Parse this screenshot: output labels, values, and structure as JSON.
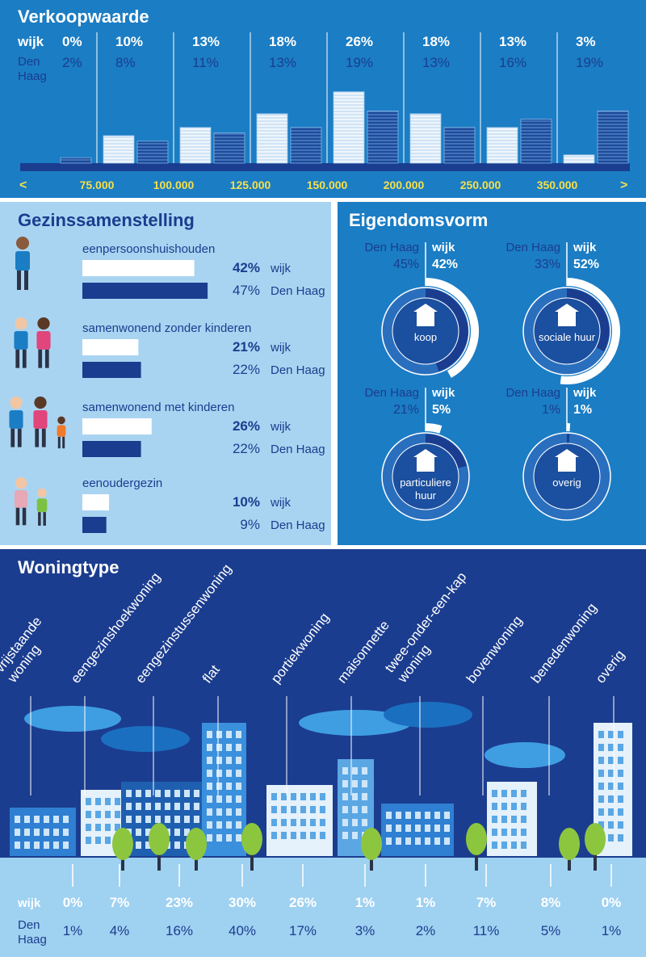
{
  "chart_data": [
    {
      "type": "bar",
      "title": "Verkoopwaarde",
      "bin_edges": [
        {
          "value": 75000,
          "label": "75.000"
        },
        {
          "value": 100000,
          "label": "100.000"
        },
        {
          "value": 125000,
          "label": "125.000"
        },
        {
          "value": 150000,
          "label": "150.000"
        },
        {
          "value": 200000,
          "label": "200.000"
        },
        {
          "value": 250000,
          "label": "250.000"
        },
        {
          "value": 350000,
          "label": "350.000"
        }
      ],
      "series": [
        {
          "name": "wijk",
          "color": "#eef5fc",
          "values": [
            0,
            10,
            13,
            18,
            26,
            18,
            13,
            3
          ],
          "value_labels": [
            "0%",
            "10%",
            "13%",
            "18%",
            "26%",
            "18%",
            "13%",
            "3%"
          ]
        },
        {
          "name": "Den Haag",
          "color": "#1f4b9c",
          "values": [
            2,
            8,
            11,
            13,
            19,
            13,
            16,
            19
          ],
          "value_labels": [
            "2%",
            "8%",
            "11%",
            "13%",
            "19%",
            "13%",
            "16%",
            "19%"
          ]
        }
      ]
    },
    {
      "type": "hbar",
      "title": "Gezinssamenstelling",
      "categories": [
        "eenpersoonshuishouden",
        "samenwonend zonder kinderen",
        "samenwonend met kinderen",
        "eenoudergezin"
      ],
      "series": [
        {
          "name": "wijk",
          "color": "#ffffff",
          "values": [
            42,
            21,
            26,
            10
          ],
          "value_labels": [
            "42%",
            "21%",
            "26%",
            "10%"
          ]
        },
        {
          "name": "Den Haag",
          "color": "#1b3d8f",
          "values": [
            47,
            22,
            22,
            9
          ],
          "value_labels": [
            "47%",
            "22%",
            "22%",
            "9%"
          ]
        }
      ]
    },
    {
      "type": "donut",
      "title": "Eigendomsvorm",
      "categories": [
        "koop",
        "sociale huur",
        "particuliere huur",
        "overig"
      ],
      "series": [
        {
          "name": "wijk",
          "color": "#ffffff",
          "values": [
            42,
            52,
            5,
            1
          ],
          "value_labels": [
            "42%",
            "52%",
            "5%",
            "1%"
          ]
        },
        {
          "name": "Den Haag",
          "color": "#1b3d8f",
          "values": [
            45,
            33,
            21,
            1
          ],
          "value_labels": [
            "45%",
            "33%",
            "21%",
            "1%"
          ]
        }
      ]
    },
    {
      "type": "table",
      "title": "Woningtype",
      "categories": [
        "vrijstaande woning",
        "eengezinshoekwoning",
        "eengezinstussenwoning",
        "flat",
        "portiekwoning",
        "maisonnette",
        "twee-onder-een-kap woning",
        "bovenwoning",
        "benedenwoning",
        "overig"
      ],
      "series": [
        {
          "name": "wijk",
          "color": "#ffffff",
          "values": [
            0,
            7,
            23,
            30,
            26,
            1,
            1,
            7,
            8,
            0
          ],
          "value_labels": [
            "0%",
            "7%",
            "23%",
            "30%",
            "26%",
            "1%",
            "1%",
            "7%",
            "8%",
            "0%"
          ]
        },
        {
          "name": "Den Haag",
          "color": "#1b3d8f",
          "values": [
            1,
            4,
            16,
            40,
            17,
            3,
            2,
            11,
            5,
            1
          ],
          "value_labels": [
            "1%",
            "4%",
            "16%",
            "40%",
            "17%",
            "3%",
            "2%",
            "11%",
            "5%",
            "1%"
          ]
        }
      ]
    }
  ]
}
